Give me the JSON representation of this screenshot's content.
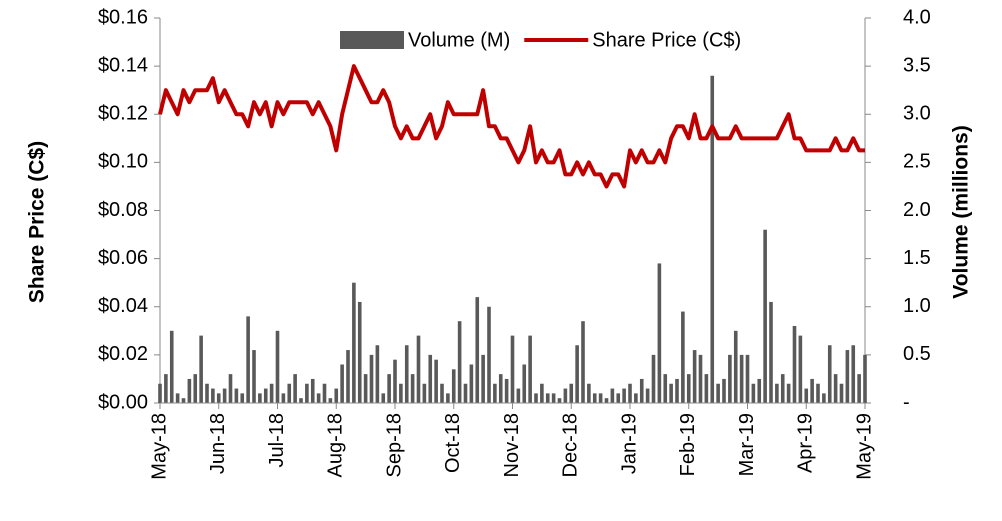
{
  "chart_data": {
    "type": "bar-line",
    "legend": "top",
    "ylabel": "Share Price (C$)",
    "y2label": "Volume (millions)",
    "categories": [
      "May-18",
      null,
      null,
      null,
      null,
      null,
      null,
      null,
      null,
      null,
      "Jun-18",
      null,
      null,
      null,
      null,
      null,
      null,
      null,
      null,
      null,
      "Jul-18",
      null,
      null,
      null,
      null,
      null,
      null,
      null,
      null,
      null,
      "Aug-18",
      null,
      null,
      null,
      null,
      null,
      null,
      null,
      null,
      null,
      "Sep-18",
      null,
      null,
      null,
      null,
      null,
      null,
      null,
      null,
      null,
      "Oct-18",
      null,
      null,
      null,
      null,
      null,
      null,
      null,
      null,
      null,
      "Nov-18",
      null,
      null,
      null,
      null,
      null,
      null,
      null,
      null,
      null,
      "Dec-18",
      null,
      null,
      null,
      null,
      null,
      null,
      null,
      null,
      null,
      "Jan-19",
      null,
      null,
      null,
      null,
      null,
      null,
      null,
      null,
      null,
      "Feb-19",
      null,
      null,
      null,
      null,
      null,
      null,
      null,
      null,
      null,
      "Mar-19",
      null,
      null,
      null,
      null,
      null,
      null,
      null,
      null,
      null,
      "Apr-19",
      null,
      null,
      null,
      null,
      null,
      null,
      null,
      null,
      null,
      "May-19"
    ],
    "series": [
      {
        "name": "Volume (M)",
        "type": "bar",
        "axis": "y2",
        "color": "#595959",
        "values": [
          0.2,
          0.3,
          0.75,
          0.1,
          0.05,
          0.25,
          0.3,
          0.7,
          0.2,
          0.15,
          0.1,
          0.15,
          0.3,
          0.15,
          0.1,
          0.9,
          0.55,
          0.1,
          0.15,
          0.2,
          0.75,
          0.1,
          0.2,
          0.3,
          0.05,
          0.2,
          0.25,
          0.1,
          0.2,
          0.05,
          0.15,
          0.4,
          0.55,
          1.25,
          1.05,
          0.3,
          0.5,
          0.6,
          0.1,
          0.3,
          0.45,
          0.2,
          0.6,
          0.3,
          0.7,
          0.2,
          0.5,
          0.45,
          0.2,
          0.1,
          0.35,
          0.85,
          0.2,
          0.4,
          1.1,
          0.5,
          1.0,
          0.2,
          0.3,
          0.25,
          0.7,
          0.15,
          0.4,
          0.7,
          0.1,
          0.2,
          0.1,
          0.1,
          0.05,
          0.15,
          0.2,
          0.6,
          0.85,
          0.2,
          0.1,
          0.1,
          0.05,
          0.15,
          0.1,
          0.15,
          0.2,
          0.1,
          0.25,
          0.15,
          0.5,
          1.45,
          0.3,
          0.2,
          0.25,
          0.95,
          0.3,
          0.55,
          0.5,
          0.3,
          3.4,
          0.2,
          0.25,
          0.5,
          0.75,
          0.5,
          0.5,
          0.2,
          0.25,
          1.8,
          1.05,
          0.2,
          0.3,
          0.2,
          0.8,
          0.7,
          0.15,
          0.25,
          0.2,
          0.1,
          0.6,
          0.3,
          0.2,
          0.55,
          0.6,
          0.3,
          0.5
        ]
      },
      {
        "name": "Share Price (C$)",
        "type": "line",
        "axis": "y",
        "color": "#c00000",
        "values": [
          0.12,
          0.13,
          0.125,
          0.12,
          0.13,
          0.125,
          0.13,
          0.13,
          0.13,
          0.135,
          0.125,
          0.13,
          0.125,
          0.12,
          0.12,
          0.115,
          0.125,
          0.12,
          0.125,
          0.115,
          0.125,
          0.12,
          0.125,
          0.125,
          0.125,
          0.125,
          0.12,
          0.125,
          0.12,
          0.115,
          0.105,
          0.12,
          0.13,
          0.14,
          0.135,
          0.13,
          0.125,
          0.125,
          0.13,
          0.125,
          0.115,
          0.11,
          0.115,
          0.11,
          0.11,
          0.115,
          0.12,
          0.11,
          0.115,
          0.125,
          0.12,
          0.12,
          0.12,
          0.12,
          0.12,
          0.13,
          0.115,
          0.115,
          0.11,
          0.11,
          0.105,
          0.1,
          0.105,
          0.115,
          0.1,
          0.105,
          0.1,
          0.1,
          0.105,
          0.095,
          0.095,
          0.1,
          0.095,
          0.1,
          0.095,
          0.095,
          0.09,
          0.095,
          0.095,
          0.09,
          0.105,
          0.1,
          0.105,
          0.1,
          0.1,
          0.105,
          0.1,
          0.11,
          0.115,
          0.115,
          0.11,
          0.12,
          0.11,
          0.11,
          0.115,
          0.11,
          0.11,
          0.11,
          0.115,
          0.11,
          0.11,
          0.11,
          0.11,
          0.11,
          0.11,
          0.11,
          0.115,
          0.12,
          0.11,
          0.11,
          0.105,
          0.105,
          0.105,
          0.105,
          0.105,
          0.11,
          0.105,
          0.105,
          0.11,
          0.105,
          0.105
        ]
      }
    ],
    "ylim": [
      0,
      0.16
    ],
    "yticks": [
      {
        "value": 0,
        "label": "$0.00"
      },
      {
        "value": 0.02,
        "label": "$0.02"
      },
      {
        "value": 0.04,
        "label": "$0.04"
      },
      {
        "value": 0.06,
        "label": "$0.06"
      },
      {
        "value": 0.08,
        "label": "$0.08"
      },
      {
        "value": 0.1,
        "label": "$0.10"
      },
      {
        "value": 0.12,
        "label": "$0.12"
      },
      {
        "value": 0.14,
        "label": "$0.14"
      },
      {
        "value": 0.16,
        "label": "$0.16"
      }
    ],
    "y2lim": [
      0,
      4
    ],
    "y2ticks": [
      {
        "value": 0,
        "label": "-"
      },
      0.5,
      {
        "value": 1,
        "label": "1.0"
      },
      1.5,
      {
        "value": 2,
        "label": "2.0"
      },
      2.5,
      {
        "value": 3,
        "label": "3.0"
      },
      3.5,
      {
        "value": 4,
        "label": "4.0"
      }
    ]
  }
}
